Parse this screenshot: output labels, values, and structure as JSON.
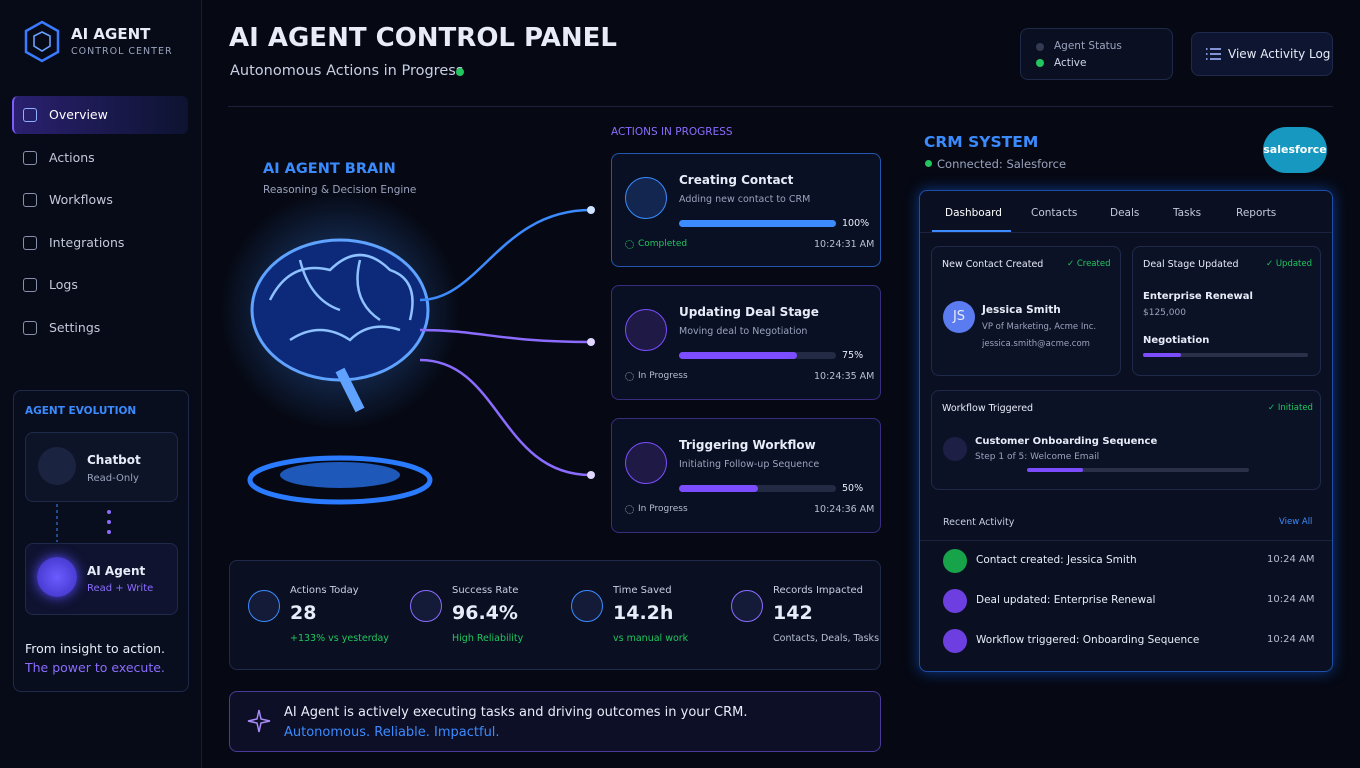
{
  "sidebar": {
    "brand": {
      "title": "AI AGENT",
      "subtitle": "CONTROL CENTER"
    },
    "nav": [
      "Overview",
      "Actions",
      "Workflows",
      "Integrations",
      "Logs",
      "Settings"
    ],
    "evolution": {
      "title": "AGENT EVOLUTION",
      "chatbot": {
        "name": "Chatbot",
        "access": "Read-Only"
      },
      "agent": {
        "name": "AI Agent",
        "access": "Read + Write"
      }
    },
    "tagline": [
      "From insight to action.",
      "The power to execute."
    ]
  },
  "header": {
    "title": "AI AGENT CONTROL PANEL",
    "subtitle": "Autonomous Actions in Progress",
    "status": {
      "label": "Agent Status",
      "value": "Active"
    },
    "button": "View Activity Log"
  },
  "brain": {
    "title": "AI AGENT BRAIN",
    "subtitle": "Reasoning & Decision Engine"
  },
  "actions": {
    "heading": "ACTIONS IN PROGRESS",
    "items": [
      {
        "title": "Creating Contact",
        "detail": "Adding new contact to CRM",
        "progress": 100,
        "progress_label": "100%",
        "status": "Completed",
        "time": "10:24:31 AM"
      },
      {
        "title": "Updating Deal Stage",
        "detail": "Moving deal to Negotiation",
        "progress": 75,
        "progress_label": "75%",
        "status": "In Progress",
        "time": "10:24:35 AM"
      },
      {
        "title": "Triggering Workflow",
        "detail": "Initiating Follow-up Sequence",
        "progress": 50,
        "progress_label": "50%",
        "status": "In Progress",
        "time": "10:24:36 AM"
      }
    ]
  },
  "stats": [
    {
      "label": "Actions Today",
      "value": "28",
      "note": "+133% vs yesterday"
    },
    {
      "label": "Success Rate",
      "value": "96.4%",
      "note": "High Reliability"
    },
    {
      "label": "Time Saved",
      "value": "14.2h",
      "note": "vs manual work"
    },
    {
      "label": "Records Impacted",
      "value": "142",
      "note": "Contacts, Deals, Tasks"
    }
  ],
  "banner": {
    "line1": "AI Agent is actively executing tasks and driving outcomes in your CRM.",
    "line2": "Autonomous. Reliable. Impactful."
  },
  "crm": {
    "title": "CRM SYSTEM",
    "connection": "Connected: Salesforce",
    "logo": "salesforce",
    "tabs": [
      "Dashboard",
      "Contacts",
      "Deals",
      "Tasks",
      "Reports"
    ],
    "new_contact": {
      "heading": "New Contact Created",
      "badge": "Created",
      "initials": "JS",
      "name": "Jessica Smith",
      "role": "VP of Marketing, Acme Inc.",
      "email": "jessica.smith@acme.com"
    },
    "deal": {
      "heading": "Deal Stage Updated",
      "badge": "Updated",
      "name": "Enterprise Renewal",
      "amount": "$125,000",
      "stage": "Negotiation"
    },
    "workflow": {
      "heading": "Workflow Triggered",
      "badge": "Initiated",
      "name": "Customer Onboarding Sequence",
      "step": "Step 1 of 5: Welcome Email"
    },
    "recent": {
      "heading": "Recent Activity",
      "link": "View All",
      "items": [
        {
          "text": "Contact created: Jessica Smith",
          "time": "10:24 AM"
        },
        {
          "text": "Deal updated: Enterprise Renewal",
          "time": "10:24 AM"
        },
        {
          "text": "Workflow triggered: Onboarding Sequence",
          "time": "10:24 AM"
        }
      ]
    }
  }
}
